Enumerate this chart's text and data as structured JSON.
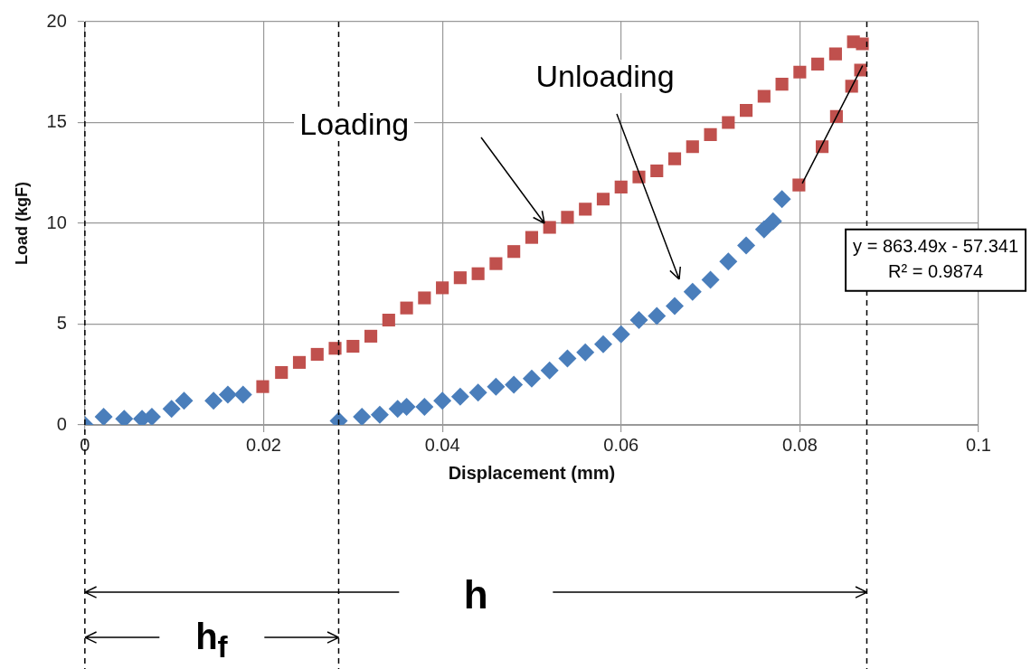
{
  "chart_data": {
    "type": "scatter",
    "xlabel": "Displacement (mm)",
    "ylabel": "Load (kgF)",
    "xlim": [
      0,
      0.1
    ],
    "xticks": [
      0,
      0.02,
      0.04,
      0.06,
      0.08,
      0.1
    ],
    "ylim": [
      0,
      20
    ],
    "yticks": [
      0,
      5,
      10,
      15,
      20
    ],
    "grid": true,
    "series": [
      {
        "type": "scatter",
        "marker": "diamond",
        "color": "#4a7ebb",
        "x": [
          0,
          0.0021,
          0.0044,
          0.0064,
          0.0075,
          0.0097,
          0.0111,
          0.0144,
          0.016,
          0.0177
        ],
        "values": [
          0,
          0.4,
          0.3,
          0.3,
          0.4,
          0.8,
          1.2,
          1.2,
          1.5,
          1.5
        ]
      },
      {
        "type": "scatter",
        "marker": "square",
        "color": "#c0504d",
        "x": [
          0.0199,
          0.022,
          0.024,
          0.026,
          0.028,
          0.03,
          0.032,
          0.034,
          0.036,
          0.038,
          0.04,
          0.042,
          0.044,
          0.046,
          0.048,
          0.05,
          0.052,
          0.054,
          0.056,
          0.058,
          0.06,
          0.062,
          0.064,
          0.066,
          0.068,
          0.07,
          0.072,
          0.074,
          0.076,
          0.078,
          0.08,
          0.082,
          0.084,
          0.086,
          0.087
        ],
        "values": [
          1.9,
          2.6,
          3.1,
          3.5,
          3.8,
          3.9,
          4.4,
          5.2,
          5.8,
          6.3,
          6.8,
          7.3,
          7.5,
          8,
          8.6,
          9.3,
          9.8,
          10.3,
          10.7,
          11.2,
          11.8,
          12.3,
          12.6,
          13.2,
          13.8,
          14.4,
          15,
          15.6,
          16.3,
          16.9,
          17.5,
          17.9,
          18.4,
          19,
          18.9
        ]
      },
      {
        "type": "scatter",
        "marker": "diamond",
        "color": "#4a7ebb",
        "x": [
          0.0284,
          0.031,
          0.033,
          0.035,
          0.036,
          0.038,
          0.04,
          0.042,
          0.044,
          0.046,
          0.048,
          0.05,
          0.052,
          0.054,
          0.056,
          0.058,
          0.06,
          0.062,
          0.064,
          0.066,
          0.068,
          0.07,
          0.072,
          0.074,
          0.076,
          0.077,
          0.078
        ],
        "values": [
          0.2,
          0.4,
          0.5,
          0.8,
          0.9,
          0.9,
          1.2,
          1.4,
          1.6,
          1.9,
          2,
          2.3,
          2.7,
          3.3,
          3.6,
          4,
          4.5,
          5.2,
          5.4,
          5.9,
          6.6,
          7.2,
          8.1,
          8.9,
          9.7,
          10.1,
          11.2
        ]
      },
      {
        "type": "scatter",
        "marker": "square",
        "color": "#c0504d",
        "x": [
          0.0799,
          0.0825,
          0.0841,
          0.0858,
          0.0868
        ],
        "values": [
          11.9,
          13.8,
          15.3,
          16.8,
          17.6
        ]
      },
      {
        "type": "line",
        "marker": "none",
        "color": "#000000",
        "x": [
          0.0803,
          0.087
        ],
        "values": [
          12,
          17.8
        ]
      }
    ],
    "ref_lines": [
      {
        "axis": "x",
        "value": 0,
        "line_style": "dashed",
        "color": "#000000"
      },
      {
        "axis": "x",
        "value": 0.0284,
        "line_style": "dashed",
        "color": "#000000"
      },
      {
        "axis": "x",
        "value": 0.0875,
        "line_style": "dashed",
        "color": "#000000"
      }
    ],
    "annotations": [
      "y = 863.49x - 57.341",
      "R² = 0.9874",
      "Loading",
      "Unloading",
      "h",
      "h$_{f}$"
    ]
  }
}
